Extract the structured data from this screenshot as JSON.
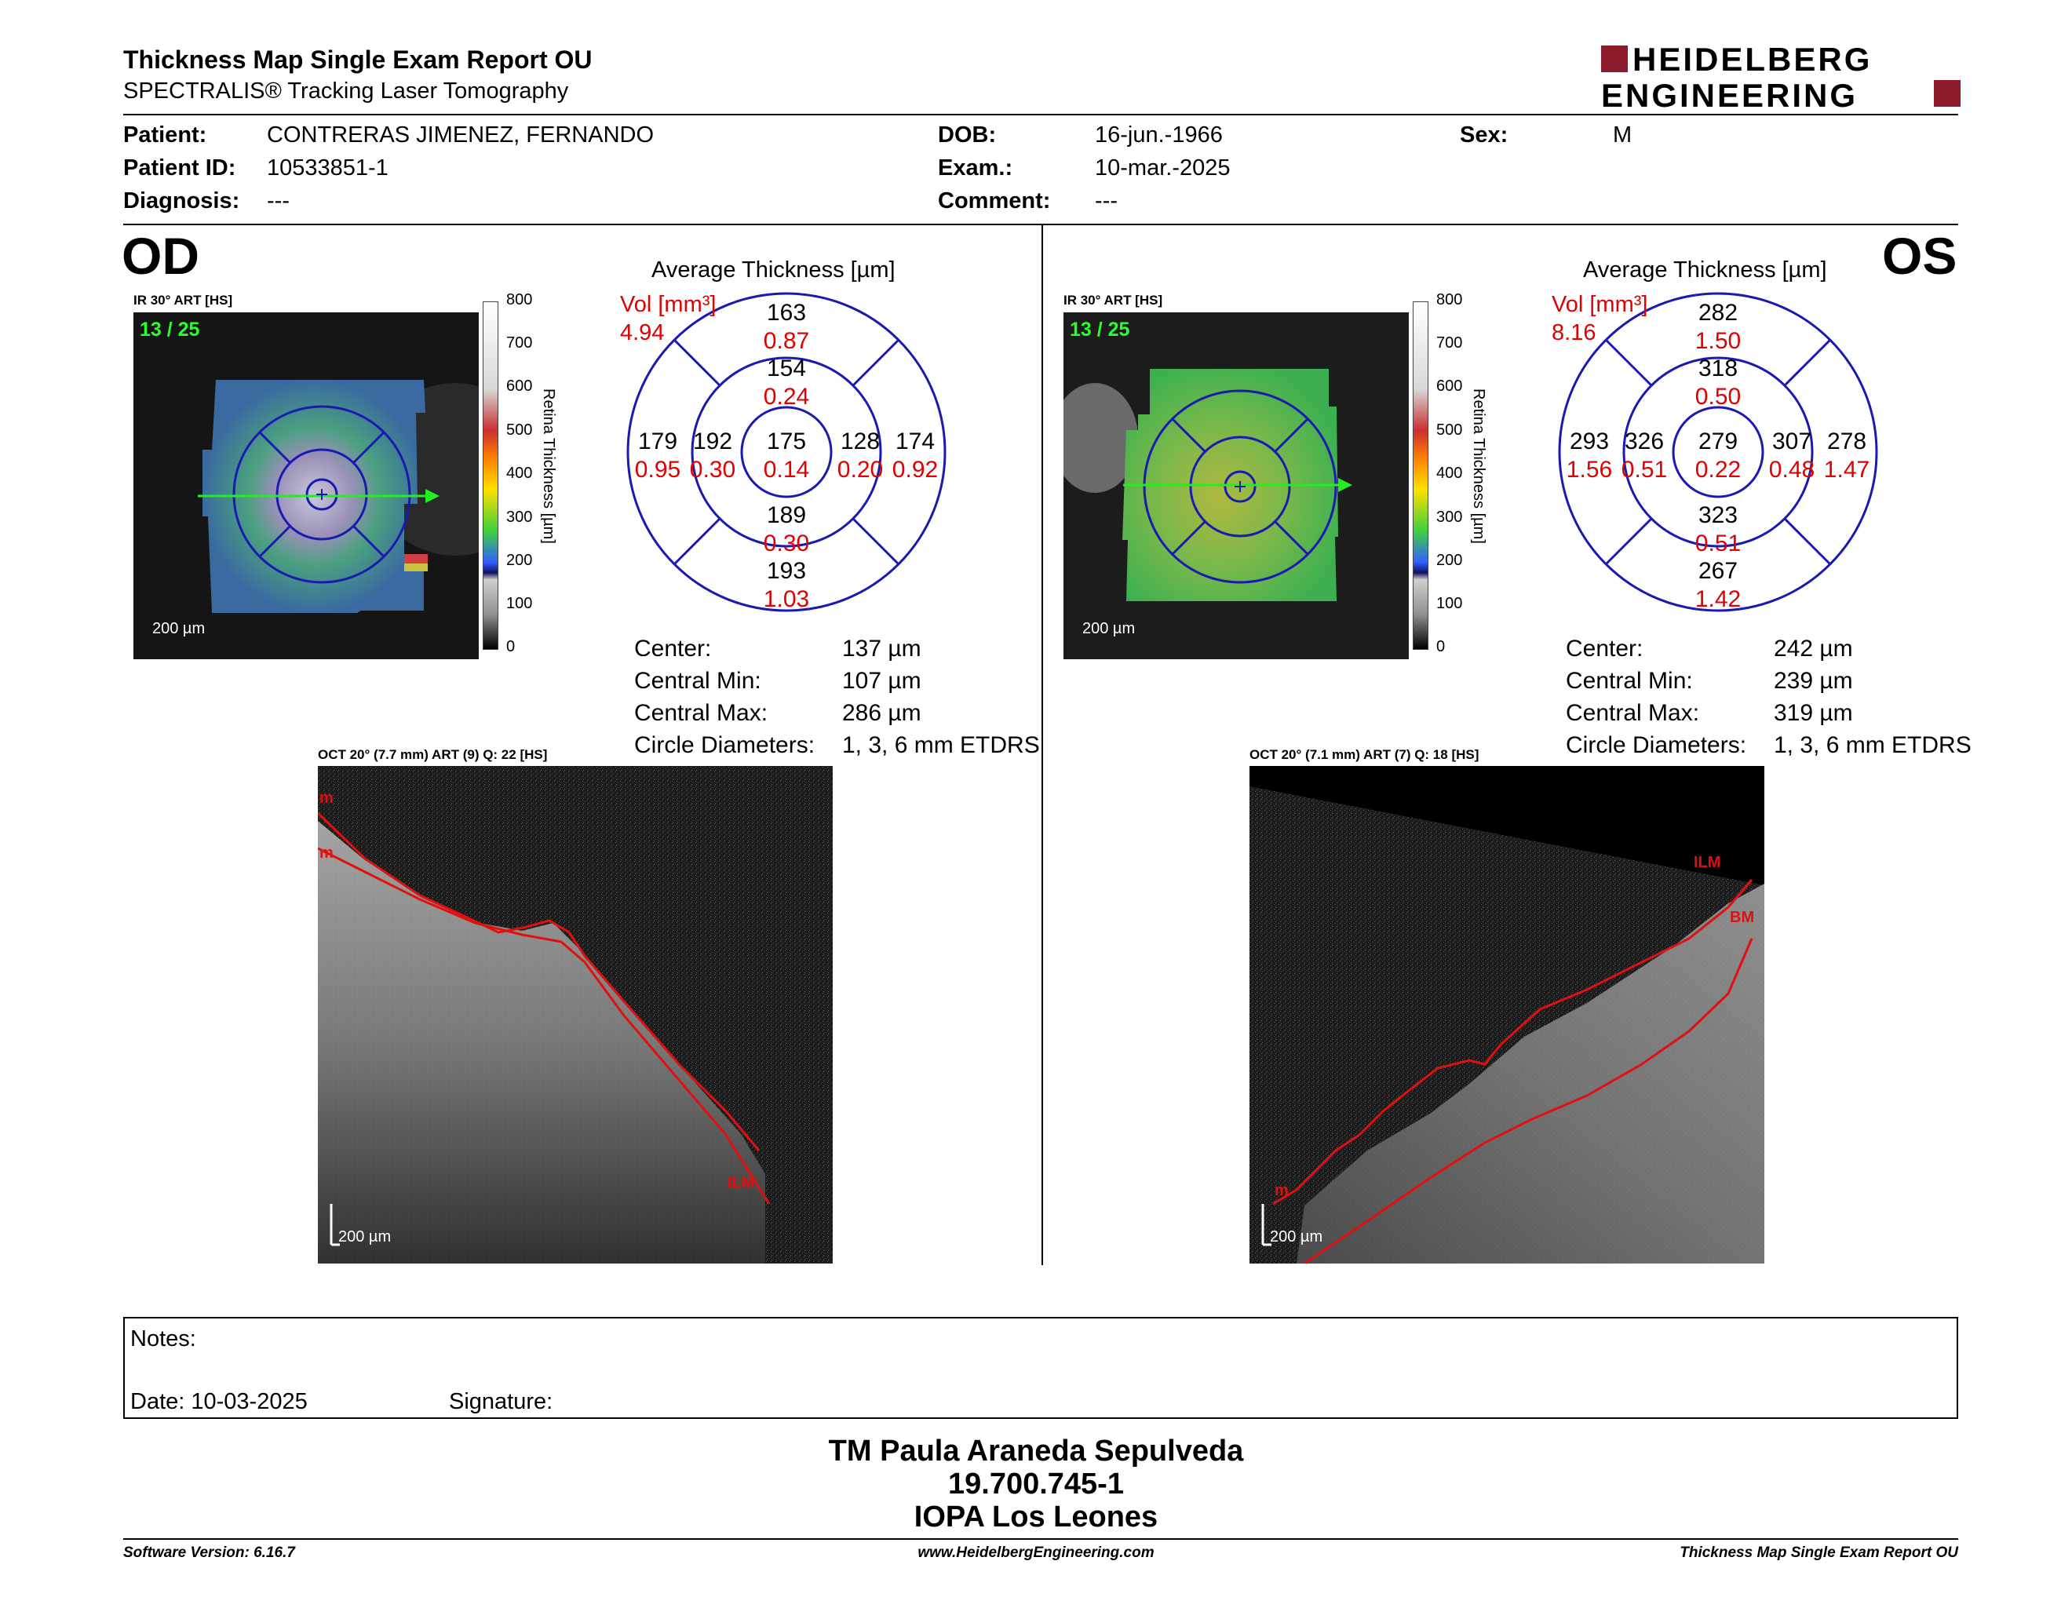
{
  "header": {
    "title": "Thickness Map Single Exam Report OU",
    "subtitle": "SPECTRALIS® Tracking Laser Tomography",
    "logo_line1": "HEIDELBERG",
    "logo_line2": "ENGINEERING",
    "brand_color": "#8b1a2b"
  },
  "patient": {
    "patient_label": "Patient:",
    "patient_value": "CONTRERAS JIMENEZ, FERNANDO",
    "id_label": "Patient ID:",
    "id_value": "10533851-1",
    "diag_label": "Diagnosis:",
    "diag_value": "---",
    "dob_label": "DOB:",
    "dob_value": "16-jun.-1966",
    "exam_label": "Exam.:",
    "exam_value": "10-mar.-2025",
    "comment_label": "Comment:",
    "comment_value": "---",
    "sex_label": "Sex:",
    "sex_value": "M"
  },
  "od": {
    "eye": "OD",
    "ir_label": "IR 30° ART [HS]",
    "frame": "13 / 25",
    "scale": "200 µm",
    "colorbar_ticks": [
      "800",
      "700",
      "600",
      "500",
      "400",
      "300",
      "200",
      "100",
      "0"
    ],
    "colorbar_title": "Retina  Thickness [µm]",
    "avg_title": "Average Thickness [µm]",
    "vol_label": "Vol [mm³]",
    "vol_total": "4.94",
    "etdrs": {
      "outer_sup": "163",
      "outer_sup_vol": "0.87",
      "inner_sup": "154",
      "inner_sup_vol": "0.24",
      "outer_temp": "179",
      "outer_temp_vol": "0.95",
      "inner_temp": "192",
      "inner_temp_vol": "0.30",
      "center": "175",
      "center_vol": "0.14",
      "inner_nas": "128",
      "inner_nas_vol": "0.20",
      "outer_nas": "174",
      "outer_nas_vol": "0.92",
      "inner_inf": "189",
      "inner_inf_vol": "0.30",
      "outer_inf": "193",
      "outer_inf_vol": "1.03"
    },
    "stats": {
      "center_label": "Center:",
      "center_value": "137 µm",
      "min_label": "Central Min:",
      "min_value": "107 µm",
      "max_label": "Central Max:",
      "max_value": "286 µm",
      "diam_label": "Circle Diameters:",
      "diam_value": "1, 3, 6 mm ETDRS"
    },
    "oct_label": "OCT 20° (7.7 mm) ART (9) Q: 22 [HS]",
    "oct_scale": "200 µm",
    "oct_tag_top": "m",
    "oct_tag_mid": "m",
    "oct_tag_ilm": "ILM"
  },
  "os": {
    "eye": "OS",
    "ir_label": "IR 30° ART [HS]",
    "frame": "13 / 25",
    "scale": "200 µm",
    "colorbar_ticks": [
      "800",
      "700",
      "600",
      "500",
      "400",
      "300",
      "200",
      "100",
      "0"
    ],
    "colorbar_title": "Retina  Thickness [µm]",
    "avg_title": "Average Thickness [µm]",
    "vol_label": "Vol [mm³]",
    "vol_total": "8.16",
    "etdrs": {
      "outer_sup": "282",
      "outer_sup_vol": "1.50",
      "inner_sup": "318",
      "inner_sup_vol": "0.50",
      "outer_temp": "293",
      "outer_temp_vol": "1.56",
      "inner_temp": "326",
      "inner_temp_vol": "0.51",
      "center": "279",
      "center_vol": "0.22",
      "inner_nas": "307",
      "inner_nas_vol": "0.48",
      "outer_nas": "278",
      "outer_nas_vol": "1.47",
      "inner_inf": "323",
      "inner_inf_vol": "0.51",
      "outer_inf": "267",
      "outer_inf_vol": "1.42"
    },
    "stats": {
      "center_label": "Center:",
      "center_value": "242 µm",
      "min_label": "Central Min:",
      "min_value": "239 µm",
      "max_label": "Central Max:",
      "max_value": "319 µm",
      "diam_label": "Circle Diameters:",
      "diam_value": "1, 3, 6 mm ETDRS"
    },
    "oct_label": "OCT 20° (7.1 mm) ART (7) Q: 18 [HS]",
    "oct_scale": "200 µm",
    "oct_tag_ilm": "ILM",
    "oct_tag_bm": "BM",
    "oct_tag_m": "m"
  },
  "notes": {
    "notes_label": "Notes:",
    "date_label": "Date: 10-03-2025",
    "signature_label": "Signature:"
  },
  "signer": {
    "name": "TM Paula Araneda Sepulveda",
    "id": "19.700.745-1",
    "org": "IOPA Los Leones"
  },
  "footer": {
    "software": "Software Version: 6.16.7",
    "website": "www.HeidelbergEngineering.com",
    "report": "Thickness Map Single Exam Report OU"
  },
  "colors": {
    "vol_red": "#e00000",
    "grid_blue": "#1a1ab0",
    "arrow_green": "#22ee22",
    "seg_red": "#e01010"
  }
}
